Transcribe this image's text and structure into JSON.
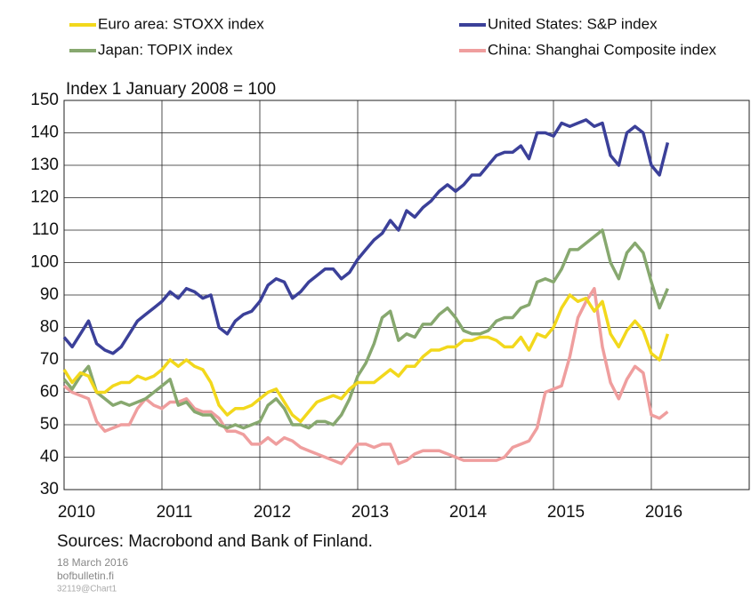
{
  "chart_data": {
    "type": "line",
    "subtitle": "Index 1 January 2008 = 100",
    "source": "Sources: Macrobond and Bank of Finland.",
    "footnotes": [
      "18 March 2016",
      "bofbulletin.fi",
      "32119@Chart1"
    ],
    "x": [
      2010,
      2010.083,
      2010.167,
      2010.25,
      2010.333,
      2010.417,
      2010.5,
      2010.583,
      2010.667,
      2010.75,
      2010.833,
      2010.917,
      2011,
      2011.083,
      2011.167,
      2011.25,
      2011.333,
      2011.417,
      2011.5,
      2011.583,
      2011.667,
      2011.75,
      2011.833,
      2011.917,
      2012,
      2012.083,
      2012.167,
      2012.25,
      2012.333,
      2012.417,
      2012.5,
      2012.583,
      2012.667,
      2012.75,
      2012.833,
      2012.917,
      2013,
      2013.083,
      2013.167,
      2013.25,
      2013.333,
      2013.417,
      2013.5,
      2013.583,
      2013.667,
      2013.75,
      2013.833,
      2013.917,
      2014,
      2014.083,
      2014.167,
      2014.25,
      2014.333,
      2014.417,
      2014.5,
      2014.583,
      2014.667,
      2014.75,
      2014.833,
      2014.917,
      2015,
      2015.083,
      2015.167,
      2015.25,
      2015.333,
      2015.417,
      2015.5,
      2015.583,
      2015.667,
      2015.75,
      2015.833,
      2015.917,
      2016,
      2016.083,
      2016.167
    ],
    "series": [
      {
        "name": "Euro area: STOXX index",
        "color": "#f2d81c",
        "values": [
          67,
          63,
          66,
          65,
          60,
          60,
          62,
          63,
          63,
          65,
          64,
          65,
          67,
          70,
          68,
          70,
          68,
          67,
          63,
          56,
          53,
          55,
          55,
          56,
          58,
          60,
          61,
          57,
          53,
          51,
          54,
          57,
          58,
          59,
          58,
          61,
          63,
          63,
          63,
          65,
          67,
          65,
          68,
          68,
          71,
          73,
          73,
          74,
          74,
          76,
          76,
          77,
          77,
          76,
          74,
          74,
          77,
          73,
          78,
          77,
          80,
          86,
          90,
          88,
          89,
          85,
          88,
          78,
          74,
          79,
          82,
          79,
          72,
          70,
          78
        ]
      },
      {
        "name": "United States: S&P index",
        "color": "#3b4099",
        "values": [
          77,
          74,
          78,
          82,
          75,
          73,
          72,
          74,
          78,
          82,
          84,
          86,
          88,
          91,
          89,
          92,
          91,
          89,
          90,
          80,
          78,
          82,
          84,
          85,
          88,
          93,
          95,
          94,
          89,
          91,
          94,
          96,
          98,
          98,
          95,
          97,
          101,
          104,
          107,
          109,
          113,
          110,
          116,
          114,
          117,
          119,
          122,
          124,
          122,
          124,
          127,
          127,
          130,
          133,
          134,
          134,
          136,
          132,
          140,
          140,
          139,
          143,
          142,
          143,
          144,
          142,
          143,
          133,
          130,
          140,
          142,
          140,
          130,
          127,
          137
        ]
      },
      {
        "name": "Japan: TOPIX index",
        "color": "#87a86f",
        "values": [
          64,
          61,
          65,
          68,
          60,
          58,
          56,
          57,
          56,
          57,
          58,
          60,
          62,
          64,
          56,
          57,
          54,
          53,
          53,
          50,
          49,
          50,
          49,
          50,
          51,
          56,
          58,
          55,
          50,
          50,
          49,
          51,
          51,
          50,
          53,
          58,
          65,
          69,
          75,
          83,
          85,
          76,
          78,
          77,
          81,
          81,
          84,
          86,
          83,
          79,
          78,
          78,
          79,
          82,
          83,
          83,
          86,
          87,
          94,
          95,
          94,
          98,
          104,
          104,
          106,
          108,
          110,
          100,
          95,
          103,
          106,
          103,
          94,
          86,
          92
        ]
      },
      {
        "name": "China: Shanghai Composite index",
        "color": "#ef9e9e",
        "values": [
          62,
          60,
          59,
          58,
          51,
          48,
          49,
          50,
          50,
          55,
          58,
          56,
          55,
          57,
          57,
          58,
          55,
          54,
          54,
          52,
          48,
          48,
          47,
          44,
          44,
          46,
          44,
          46,
          45,
          43,
          42,
          41,
          40,
          39,
          38,
          41,
          44,
          44,
          43,
          44,
          44,
          38,
          39,
          41,
          42,
          42,
          42,
          41,
          40,
          39,
          39,
          39,
          39,
          39,
          40,
          43,
          44,
          45,
          49,
          60,
          61,
          62,
          71,
          83,
          88,
          92,
          74,
          63,
          58,
          64,
          68,
          66,
          53,
          52,
          54
        ]
      }
    ],
    "xlim": [
      2010,
      2017
    ],
    "xticks": [
      2010,
      2011,
      2012,
      2013,
      2014,
      2015,
      2016
    ],
    "ylim": [
      30,
      150
    ],
    "yticks": [
      30,
      40,
      50,
      60,
      70,
      80,
      90,
      100,
      110,
      120,
      130,
      140,
      150
    ],
    "grid": true
  }
}
